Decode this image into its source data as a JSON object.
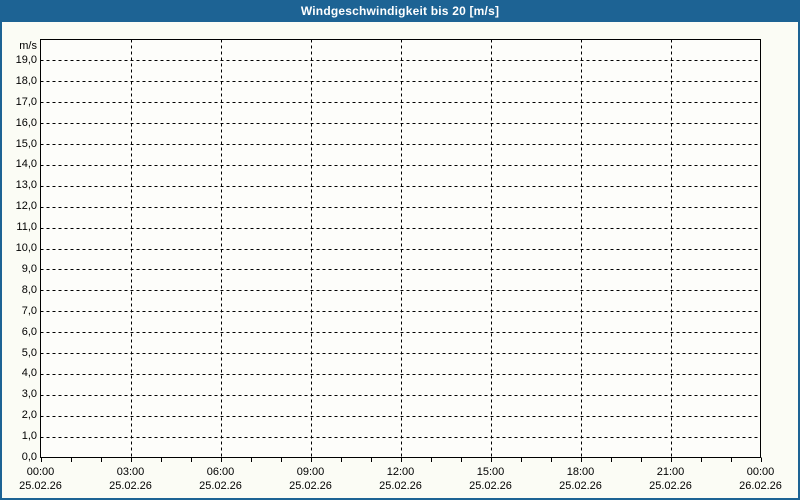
{
  "window": {
    "title": "Windgeschwindigkeit bis 20 [m/s]"
  },
  "colors": {
    "titlebar_bg": "#1d6394",
    "titlebar_text": "#ffffff",
    "frame_border": "#1d6394",
    "canvas_bg": "#fbfcf5",
    "plot_bg": "#fdfdfa",
    "plot_border": "#000000",
    "grid": "#000000",
    "label_text": "#000000"
  },
  "chart_data": {
    "type": "line",
    "title": "Windgeschwindigkeit bis 20 [m/s]",
    "grid": true,
    "legend": null,
    "series": [],
    "y_axis": {
      "unit": "m/s",
      "min": 0,
      "max": 20,
      "tick_step": 1,
      "tick_labels": [
        "0,0",
        "1,0",
        "2,0",
        "3,0",
        "4,0",
        "5,0",
        "6,0",
        "7,0",
        "8,0",
        "9,0",
        "10,0",
        "11,0",
        "12,0",
        "13,0",
        "14,0",
        "15,0",
        "16,0",
        "17,0",
        "18,0",
        "19,0"
      ]
    },
    "x_axis": {
      "start_hour": 0,
      "end_hour": 24,
      "minor_tick_every_hours": 1,
      "major_ticks": [
        {
          "hour": 0,
          "time": "00:00",
          "date": "25.02.26"
        },
        {
          "hour": 3,
          "time": "03:00",
          "date": "25.02.26"
        },
        {
          "hour": 6,
          "time": "06:00",
          "date": "25.02.26"
        },
        {
          "hour": 9,
          "time": "09:00",
          "date": "25.02.26"
        },
        {
          "hour": 12,
          "time": "12:00",
          "date": "25.02.26"
        },
        {
          "hour": 15,
          "time": "15:00",
          "date": "25.02.26"
        },
        {
          "hour": 18,
          "time": "18:00",
          "date": "25.02.26"
        },
        {
          "hour": 21,
          "time": "21:00",
          "date": "25.02.26"
        },
        {
          "hour": 24,
          "time": "00:00",
          "date": "26.02.26"
        }
      ]
    }
  }
}
